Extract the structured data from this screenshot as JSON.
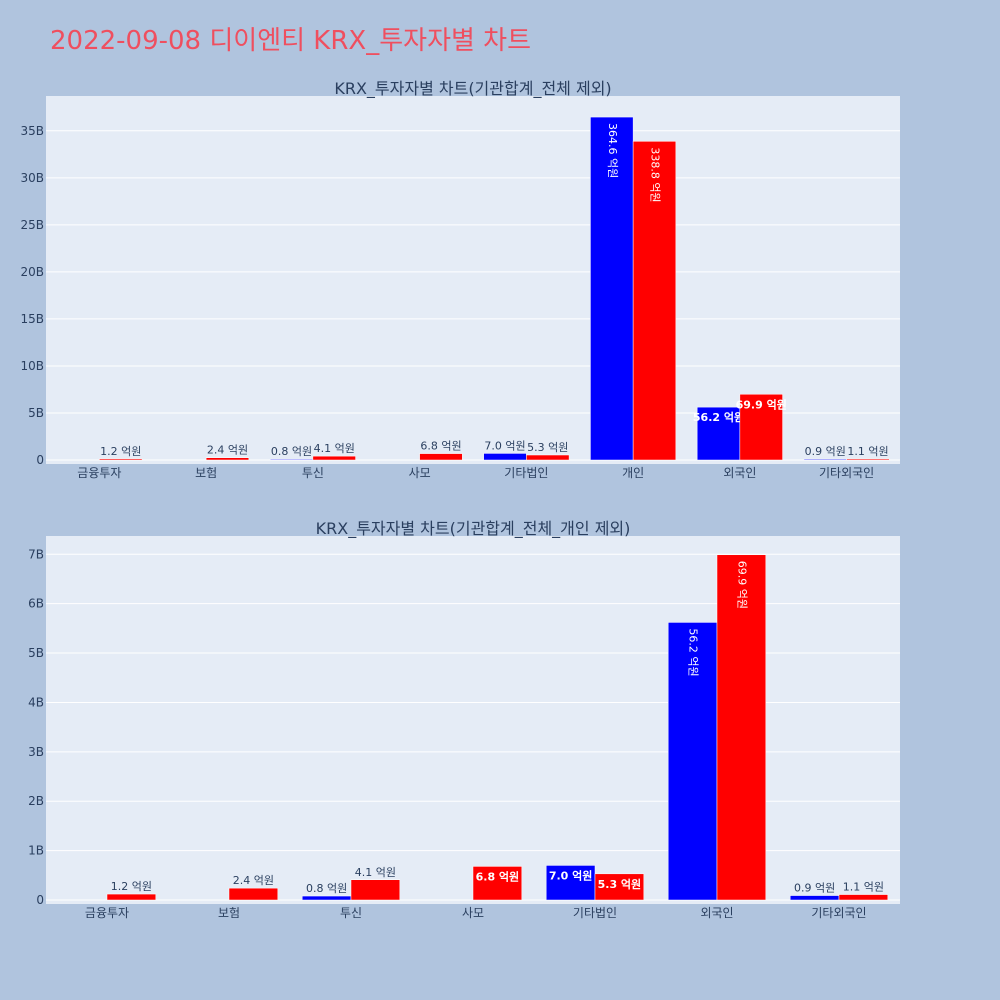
{
  "title": "2022-09-08 디이엔티 KRX_투자자별 차트",
  "colors": {
    "page_background": "#b0c4de",
    "plot_background": "#e5ecf6",
    "title": "#ef4f5f",
    "text": "#2a3f5f",
    "gridline": "#ffffff",
    "series_1": "#0000ff",
    "series_2": "#ff0000"
  },
  "chart_data": [
    {
      "type": "bar",
      "title": "KRX_투자자별 차트(기관합계_전체 제외)",
      "categories": [
        "금융투자",
        "보험",
        "투신",
        "사모",
        "기타법인",
        "개인",
        "외국인",
        "기타외국인"
      ],
      "series": [
        {
          "color": "#0000ff",
          "values": [
            0,
            0,
            80000000,
            0,
            700000000,
            36460000000,
            5620000000,
            90000000
          ],
          "labels": [
            "",
            "",
            "0.8 억원",
            "",
            "7.0 억원",
            "364.6 억원",
            "56.2 억원",
            "0.9 억원"
          ]
        },
        {
          "color": "#ff0000",
          "values": [
            120000000,
            240000000,
            410000000,
            680000000,
            530000000,
            33880000000,
            6990000000,
            110000000
          ],
          "labels": [
            "1.2 억원",
            "2.4 억원",
            "4.1 억원",
            "6.8 억원",
            "5.3 억원",
            "338.8 억원",
            "69.9 억원",
            "1.1 억원"
          ]
        }
      ],
      "ylim": [
        0,
        38700000000
      ],
      "yticks": [
        0,
        5000000000,
        10000000000,
        15000000000,
        20000000000,
        25000000000,
        30000000000,
        35000000000
      ],
      "ytick_labels": [
        "0",
        "5B",
        "10B",
        "15B",
        "20B",
        "25B",
        "30B",
        "35B"
      ],
      "grid": true,
      "legend": "none"
    },
    {
      "type": "bar",
      "title": "KRX_투자자별 차트(기관합계_전체_개인 제외)",
      "categories": [
        "금융투자",
        "보험",
        "투신",
        "사모",
        "기타법인",
        "외국인",
        "기타외국인"
      ],
      "series": [
        {
          "color": "#0000ff",
          "values": [
            0,
            0,
            80000000,
            0,
            700000000,
            5620000000,
            90000000
          ],
          "labels": [
            "",
            "",
            "0.8 억원",
            "",
            "7.0 억원",
            "56.2 억원",
            "0.9 억원"
          ]
        },
        {
          "color": "#ff0000",
          "values": [
            120000000,
            240000000,
            410000000,
            680000000,
            530000000,
            6990000000,
            110000000
          ],
          "labels": [
            "1.2 억원",
            "2.4 억원",
            "4.1 억원",
            "6.8 억원",
            "5.3 억원",
            "69.9 억원",
            "1.1 억원"
          ]
        }
      ],
      "ylim": [
        0,
        7370000000
      ],
      "yticks": [
        0,
        1000000000,
        2000000000,
        3000000000,
        4000000000,
        5000000000,
        6000000000,
        7000000000
      ],
      "ytick_labels": [
        "0",
        "1B",
        "2B",
        "3B",
        "4B",
        "5B",
        "6B",
        "7B"
      ],
      "grid": true,
      "legend": "none"
    }
  ]
}
